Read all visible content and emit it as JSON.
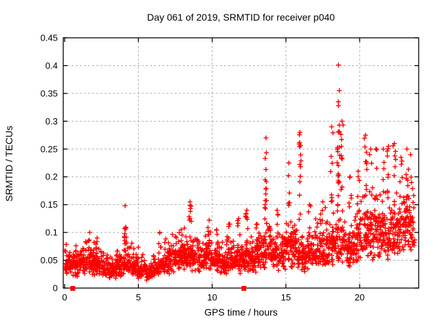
{
  "chart_data": {
    "type": "scatter",
    "title": "Day 061 of 2019, SRMTID for receiver p040",
    "xlabel": "GPS time / hours",
    "ylabel": "SRMTID / TECUs",
    "xlim": [
      0,
      24
    ],
    "ylim": [
      0,
      0.45
    ],
    "xticks": [
      0,
      5,
      10,
      15,
      20
    ],
    "ytick_values": [
      0,
      0.05,
      0.1,
      0.15,
      0.2,
      0.25,
      0.3,
      0.35,
      0.4,
      0.45
    ],
    "ytick_labels": [
      "0",
      "0.05",
      "0.1",
      "0.15",
      "0.2",
      "0.25",
      "0.3",
      "0.35",
      "0.4",
      "0.45"
    ],
    "grid": "dashed",
    "legend": "none",
    "marker": "plus",
    "marker_color": "#ff0000",
    "grid_color": "#b0b0b0",
    "axis_color": "#000000",
    "seed": 42,
    "baseline_sigma": 0.33,
    "baseline_segments": [
      [
        0.0,
        0.5,
        46,
        0.045
      ],
      [
        0.5,
        1.0,
        46,
        0.04
      ],
      [
        1.0,
        1.5,
        46,
        0.046
      ],
      [
        1.5,
        2.0,
        46,
        0.05
      ],
      [
        2.0,
        2.5,
        46,
        0.044
      ],
      [
        2.5,
        3.0,
        44,
        0.034
      ],
      [
        3.0,
        3.5,
        44,
        0.032
      ],
      [
        3.5,
        4.0,
        44,
        0.04
      ],
      [
        4.0,
        4.5,
        44,
        0.046
      ],
      [
        4.5,
        5.0,
        44,
        0.042
      ],
      [
        5.0,
        5.5,
        44,
        0.034
      ],
      [
        5.5,
        6.0,
        44,
        0.027
      ],
      [
        6.0,
        6.5,
        44,
        0.035
      ],
      [
        6.5,
        7.0,
        44,
        0.046
      ],
      [
        7.0,
        7.5,
        44,
        0.05
      ],
      [
        7.5,
        8.0,
        44,
        0.055
      ],
      [
        8.0,
        8.5,
        44,
        0.058
      ],
      [
        8.5,
        9.0,
        44,
        0.055
      ],
      [
        9.0,
        9.5,
        44,
        0.05
      ],
      [
        9.5,
        10.0,
        44,
        0.058
      ],
      [
        10.0,
        10.5,
        44,
        0.05
      ],
      [
        10.5,
        11.0,
        44,
        0.047
      ],
      [
        11.0,
        11.5,
        44,
        0.052
      ],
      [
        11.5,
        12.0,
        44,
        0.05
      ],
      [
        12.0,
        12.5,
        44,
        0.052
      ],
      [
        12.5,
        13.0,
        44,
        0.055
      ],
      [
        13.0,
        13.5,
        44,
        0.06
      ],
      [
        13.5,
        14.0,
        44,
        0.068
      ],
      [
        14.0,
        14.5,
        44,
        0.058
      ],
      [
        14.5,
        15.0,
        44,
        0.063
      ],
      [
        15.0,
        15.5,
        44,
        0.068
      ],
      [
        15.5,
        16.0,
        44,
        0.072
      ],
      [
        16.0,
        16.5,
        44,
        0.058
      ],
      [
        16.5,
        17.0,
        44,
        0.068
      ],
      [
        17.0,
        17.5,
        44,
        0.072
      ],
      [
        17.5,
        18.0,
        44,
        0.068
      ],
      [
        18.0,
        18.5,
        44,
        0.08
      ],
      [
        18.5,
        19.0,
        44,
        0.085
      ],
      [
        19.0,
        19.5,
        44,
        0.075
      ],
      [
        19.5,
        20.0,
        44,
        0.082
      ],
      [
        20.0,
        20.5,
        44,
        0.095
      ],
      [
        20.5,
        21.0,
        44,
        0.095
      ],
      [
        21.0,
        21.5,
        44,
        0.105
      ],
      [
        21.5,
        22.0,
        44,
        0.1
      ],
      [
        22.0,
        22.5,
        44,
        0.095
      ],
      [
        22.5,
        23.0,
        44,
        0.105
      ],
      [
        23.0,
        23.5,
        44,
        0.115
      ],
      [
        23.5,
        23.75,
        18,
        0.105
      ]
    ],
    "spikes": [
      [
        1.7,
        0.1,
        6
      ],
      [
        2.2,
        0.09,
        4
      ],
      [
        4.1,
        0.148,
        12
      ],
      [
        6.45,
        0.1,
        6
      ],
      [
        7.9,
        0.105,
        5
      ],
      [
        8.5,
        0.155,
        12
      ],
      [
        9.8,
        0.122,
        8
      ],
      [
        10.3,
        0.105,
        5
      ],
      [
        11.2,
        0.115,
        6
      ],
      [
        11.8,
        0.125,
        5
      ],
      [
        12.35,
        0.14,
        8
      ],
      [
        13.05,
        0.115,
        5
      ],
      [
        13.65,
        0.27,
        16
      ],
      [
        14.4,
        0.14,
        6
      ],
      [
        15.2,
        0.225,
        6
      ],
      [
        15.95,
        0.28,
        14
      ],
      [
        16.6,
        0.15,
        6
      ],
      [
        17.5,
        0.155,
        6
      ],
      [
        18.1,
        0.29,
        8
      ],
      [
        18.55,
        0.335,
        20
      ],
      [
        18.8,
        0.3,
        10
      ],
      [
        19.35,
        0.2,
        6
      ],
      [
        19.9,
        0.21,
        6
      ],
      [
        20.4,
        0.275,
        12
      ],
      [
        20.75,
        0.25,
        6
      ],
      [
        21.1,
        0.25,
        8
      ],
      [
        21.6,
        0.25,
        8
      ],
      [
        21.95,
        0.255,
        6
      ],
      [
        22.35,
        0.26,
        8
      ],
      [
        22.8,
        0.235,
        5
      ],
      [
        23.2,
        0.25,
        7
      ],
      [
        23.45,
        0.24,
        5
      ]
    ],
    "outlier_points": [
      [
        18.56,
        0.401
      ],
      [
        18.62,
        0.355
      ]
    ],
    "zero_square_points": [
      [
        0.55,
        0
      ],
      [
        12.15,
        0
      ]
    ]
  }
}
